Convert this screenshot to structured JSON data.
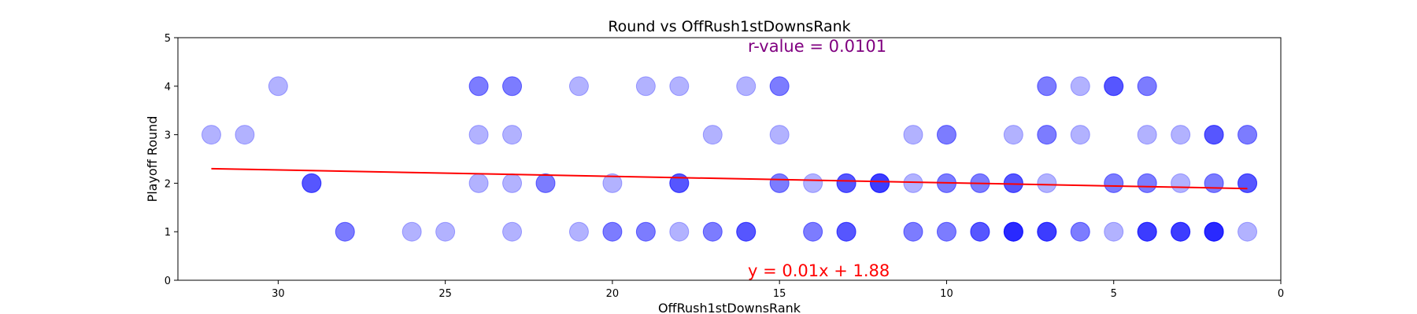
{
  "chart_data": {
    "type": "scatter",
    "title": "Round vs OffRush1stDownsRank",
    "xlabel": "OffRush1stDownsRank",
    "ylabel": "Playoff Round",
    "xlim": [
      33,
      0
    ],
    "ylim": [
      0,
      5
    ],
    "x_inverted": true,
    "xticks": [
      30,
      25,
      20,
      15,
      10,
      5,
      0
    ],
    "yticks": [
      0,
      1,
      2,
      3,
      4,
      5
    ],
    "grid": false,
    "point_color": "#0000ff",
    "point_alpha": 0.3,
    "regression_color": "#ff0000",
    "annotations": {
      "r_value": "r-value = 0.0101",
      "r_value_color": "#800080",
      "equation": "y = 0.01x + 1.88",
      "equation_color": "#ff0000"
    },
    "regression": {
      "x_start": 32,
      "x_end": 1,
      "y_start": 2.3,
      "y_end": 1.89
    },
    "points": [
      {
        "x": 30,
        "y": 4
      },
      {
        "x": 24,
        "y": 4
      },
      {
        "x": 24,
        "y": 4
      },
      {
        "x": 23,
        "y": 4
      },
      {
        "x": 23,
        "y": 4
      },
      {
        "x": 21,
        "y": 4
      },
      {
        "x": 19,
        "y": 4
      },
      {
        "x": 18,
        "y": 4
      },
      {
        "x": 16,
        "y": 4
      },
      {
        "x": 15,
        "y": 4
      },
      {
        "x": 15,
        "y": 4
      },
      {
        "x": 7,
        "y": 4
      },
      {
        "x": 7,
        "y": 4
      },
      {
        "x": 6,
        "y": 4
      },
      {
        "x": 5,
        "y": 4
      },
      {
        "x": 5,
        "y": 4
      },
      {
        "x": 5,
        "y": 4
      },
      {
        "x": 4,
        "y": 4
      },
      {
        "x": 4,
        "y": 4
      },
      {
        "x": 32,
        "y": 3
      },
      {
        "x": 31,
        "y": 3
      },
      {
        "x": 24,
        "y": 3
      },
      {
        "x": 23,
        "y": 3
      },
      {
        "x": 17,
        "y": 3
      },
      {
        "x": 15,
        "y": 3
      },
      {
        "x": 11,
        "y": 3
      },
      {
        "x": 10,
        "y": 3
      },
      {
        "x": 10,
        "y": 3
      },
      {
        "x": 8,
        "y": 3
      },
      {
        "x": 7,
        "y": 3
      },
      {
        "x": 7,
        "y": 3
      },
      {
        "x": 6,
        "y": 3
      },
      {
        "x": 4,
        "y": 3
      },
      {
        "x": 3,
        "y": 3
      },
      {
        "x": 2,
        "y": 3
      },
      {
        "x": 2,
        "y": 3
      },
      {
        "x": 2,
        "y": 3
      },
      {
        "x": 1,
        "y": 3
      },
      {
        "x": 1,
        "y": 3
      },
      {
        "x": 29,
        "y": 2
      },
      {
        "x": 29,
        "y": 2
      },
      {
        "x": 29,
        "y": 2
      },
      {
        "x": 24,
        "y": 2
      },
      {
        "x": 23,
        "y": 2
      },
      {
        "x": 22,
        "y": 2
      },
      {
        "x": 22,
        "y": 2
      },
      {
        "x": 20,
        "y": 2
      },
      {
        "x": 18,
        "y": 2
      },
      {
        "x": 18,
        "y": 2
      },
      {
        "x": 18,
        "y": 2
      },
      {
        "x": 15,
        "y": 2
      },
      {
        "x": 15,
        "y": 2
      },
      {
        "x": 14,
        "y": 2
      },
      {
        "x": 13,
        "y": 2
      },
      {
        "x": 13,
        "y": 2
      },
      {
        "x": 13,
        "y": 2
      },
      {
        "x": 12,
        "y": 2
      },
      {
        "x": 12,
        "y": 2
      },
      {
        "x": 12,
        "y": 2
      },
      {
        "x": 12,
        "y": 2
      },
      {
        "x": 11,
        "y": 2
      },
      {
        "x": 10,
        "y": 2
      },
      {
        "x": 10,
        "y": 2
      },
      {
        "x": 9,
        "y": 2
      },
      {
        "x": 9,
        "y": 2
      },
      {
        "x": 8,
        "y": 2
      },
      {
        "x": 8,
        "y": 2
      },
      {
        "x": 8,
        "y": 2
      },
      {
        "x": 7,
        "y": 2
      },
      {
        "x": 5,
        "y": 2
      },
      {
        "x": 5,
        "y": 2
      },
      {
        "x": 4,
        "y": 2
      },
      {
        "x": 4,
        "y": 2
      },
      {
        "x": 3,
        "y": 2
      },
      {
        "x": 2,
        "y": 2
      },
      {
        "x": 2,
        "y": 2
      },
      {
        "x": 1,
        "y": 2
      },
      {
        "x": 1,
        "y": 2
      },
      {
        "x": 1,
        "y": 2
      },
      {
        "x": 28,
        "y": 1
      },
      {
        "x": 28,
        "y": 1
      },
      {
        "x": 26,
        "y": 1
      },
      {
        "x": 25,
        "y": 1
      },
      {
        "x": 23,
        "y": 1
      },
      {
        "x": 21,
        "y": 1
      },
      {
        "x": 20,
        "y": 1
      },
      {
        "x": 20,
        "y": 1
      },
      {
        "x": 19,
        "y": 1
      },
      {
        "x": 19,
        "y": 1
      },
      {
        "x": 18,
        "y": 1
      },
      {
        "x": 17,
        "y": 1
      },
      {
        "x": 17,
        "y": 1
      },
      {
        "x": 16,
        "y": 1
      },
      {
        "x": 16,
        "y": 1
      },
      {
        "x": 16,
        "y": 1
      },
      {
        "x": 14,
        "y": 1
      },
      {
        "x": 14,
        "y": 1
      },
      {
        "x": 13,
        "y": 1
      },
      {
        "x": 13,
        "y": 1
      },
      {
        "x": 13,
        "y": 1
      },
      {
        "x": 11,
        "y": 1
      },
      {
        "x": 11,
        "y": 1
      },
      {
        "x": 10,
        "y": 1
      },
      {
        "x": 10,
        "y": 1
      },
      {
        "x": 9,
        "y": 1
      },
      {
        "x": 9,
        "y": 1
      },
      {
        "x": 9,
        "y": 1
      },
      {
        "x": 8,
        "y": 1
      },
      {
        "x": 8,
        "y": 1
      },
      {
        "x": 8,
        "y": 1
      },
      {
        "x": 8,
        "y": 1
      },
      {
        "x": 8,
        "y": 1
      },
      {
        "x": 7,
        "y": 1
      },
      {
        "x": 7,
        "y": 1
      },
      {
        "x": 7,
        "y": 1
      },
      {
        "x": 7,
        "y": 1
      },
      {
        "x": 6,
        "y": 1
      },
      {
        "x": 6,
        "y": 1
      },
      {
        "x": 5,
        "y": 1
      },
      {
        "x": 4,
        "y": 1
      },
      {
        "x": 4,
        "y": 1
      },
      {
        "x": 4,
        "y": 1
      },
      {
        "x": 4,
        "y": 1
      },
      {
        "x": 3,
        "y": 1
      },
      {
        "x": 3,
        "y": 1
      },
      {
        "x": 3,
        "y": 1
      },
      {
        "x": 3,
        "y": 1
      },
      {
        "x": 2,
        "y": 1
      },
      {
        "x": 2,
        "y": 1
      },
      {
        "x": 2,
        "y": 1
      },
      {
        "x": 2,
        "y": 1
      },
      {
        "x": 2,
        "y": 1
      },
      {
        "x": 1,
        "y": 1
      }
    ]
  }
}
